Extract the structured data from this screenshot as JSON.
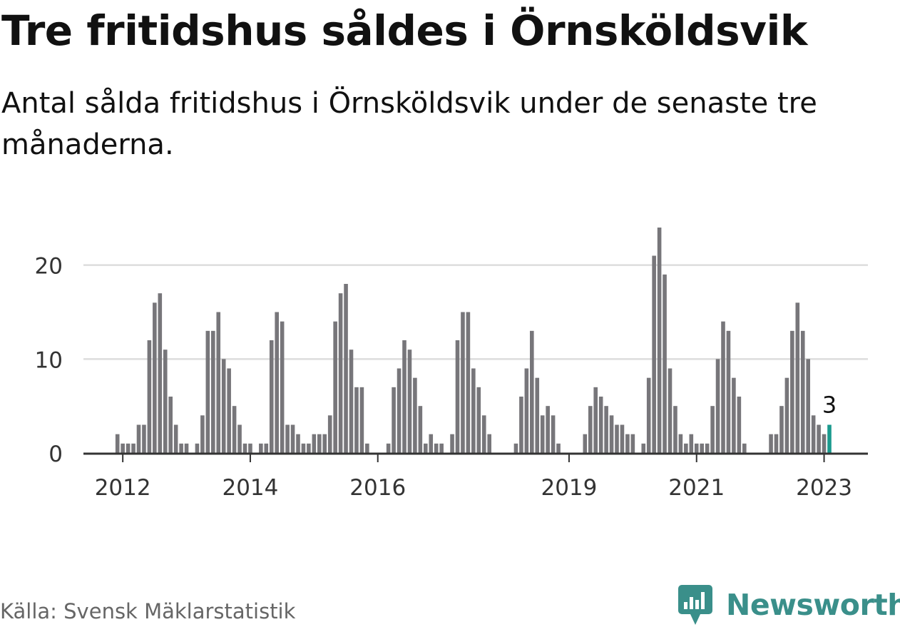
{
  "header": {
    "title": "Tre fritidshus såldes i Örnsköldsvik",
    "subtitle": "Antal sålda fritidshus i Örnsköldsvik under de senaste tre månaderna."
  },
  "footer": {
    "source": "Källa: Svensk Mäklarstatistik",
    "brand": "Newsworthy",
    "brand_icon": "newsworthy-logo-icon"
  },
  "colors": {
    "bar": "#77767a",
    "highlight": "#1b9a8e",
    "grid": "#dddddd",
    "axis": "#333333",
    "brand": "#3a8f8a"
  },
  "chart_data": {
    "type": "bar",
    "x_start": "2011-11",
    "x_unit": "month",
    "values": [
      0,
      2,
      1,
      1,
      1,
      3,
      3,
      12,
      16,
      17,
      11,
      6,
      3,
      1,
      1,
      0,
      1,
      4,
      13,
      13,
      15,
      10,
      9,
      5,
      3,
      1,
      1,
      0,
      1,
      1,
      12,
      15,
      14,
      3,
      3,
      2,
      1,
      1,
      2,
      2,
      2,
      4,
      14,
      17,
      18,
      11,
      7,
      7,
      1,
      0,
      0,
      0,
      1,
      7,
      9,
      12,
      11,
      8,
      5,
      1,
      2,
      1,
      1,
      0,
      2,
      12,
      15,
      15,
      9,
      7,
      4,
      2,
      0,
      0,
      0,
      0,
      1,
      6,
      9,
      13,
      8,
      4,
      5,
      4,
      1,
      0,
      0,
      0,
      0,
      2,
      5,
      7,
      6,
      5,
      4,
      3,
      3,
      2,
      2,
      0,
      1,
      8,
      21,
      24,
      19,
      9,
      5,
      2,
      1,
      2,
      1,
      1,
      1,
      5,
      10,
      14,
      13,
      8,
      6,
      1,
      0,
      0,
      0,
      0,
      2,
      2,
      5,
      8,
      13,
      16,
      13,
      10,
      4,
      3,
      2,
      3
    ],
    "highlight_last": true,
    "annotation": "3",
    "xticks": [
      "2012",
      "2014",
      "2016",
      "2019",
      "2021",
      "2023"
    ],
    "yticks": [
      "0",
      "10",
      "20"
    ],
    "ylim": [
      0,
      24
    ],
    "grid": true,
    "xlabel": "",
    "ylabel": ""
  }
}
